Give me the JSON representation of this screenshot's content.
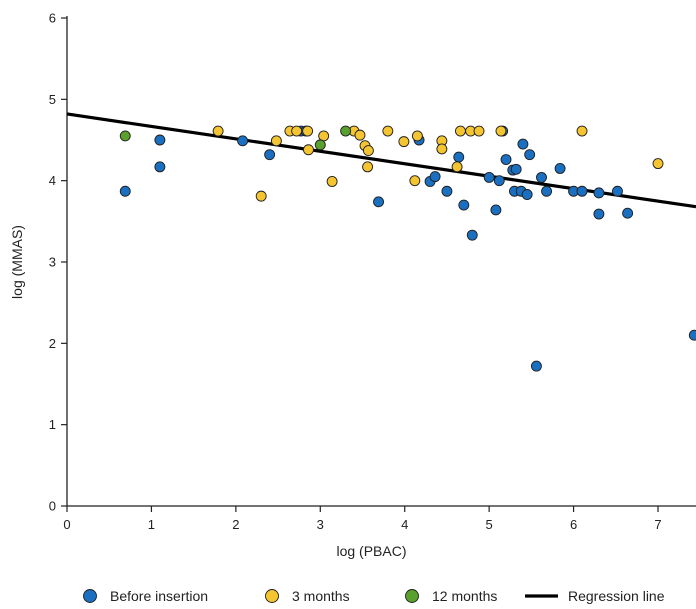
{
  "chart_data": {
    "type": "scatter",
    "title": "",
    "xlabel": "log (PBAC)",
    "ylabel": "log (MMAS)",
    "xlim": [
      0,
      7.45
    ],
    "ylim": [
      0,
      6
    ],
    "xticks": [
      0,
      1,
      2,
      3,
      4,
      5,
      6,
      7
    ],
    "yticks": [
      0,
      1,
      2,
      3,
      4,
      5,
      6
    ],
    "grid": false,
    "legend_position": "bottom",
    "series": [
      {
        "name": "Before insertion",
        "color": "#1a6fc0",
        "marker": "circle",
        "points": [
          [
            0.69,
            3.87
          ],
          [
            1.1,
            4.5
          ],
          [
            1.1,
            4.17
          ],
          [
            2.08,
            4.49
          ],
          [
            2.4,
            4.32
          ],
          [
            2.77,
            4.61
          ],
          [
            2.83,
            4.61
          ],
          [
            3.69,
            3.74
          ],
          [
            4.17,
            4.5
          ],
          [
            4.3,
            3.99
          ],
          [
            4.36,
            4.05
          ],
          [
            4.5,
            3.87
          ],
          [
            4.64,
            4.29
          ],
          [
            4.7,
            3.7
          ],
          [
            4.8,
            3.33
          ],
          [
            5.0,
            4.04
          ],
          [
            5.08,
            3.64
          ],
          [
            5.12,
            4.0
          ],
          [
            5.16,
            4.61
          ],
          [
            5.2,
            4.26
          ],
          [
            5.28,
            4.13
          ],
          [
            5.3,
            3.87
          ],
          [
            5.32,
            4.14
          ],
          [
            5.38,
            3.87
          ],
          [
            5.4,
            4.45
          ],
          [
            5.45,
            3.83
          ],
          [
            5.48,
            4.32
          ],
          [
            5.56,
            1.72
          ],
          [
            5.62,
            4.04
          ],
          [
            5.68,
            3.87
          ],
          [
            5.84,
            4.15
          ],
          [
            6.0,
            3.87
          ],
          [
            6.1,
            3.87
          ],
          [
            6.3,
            3.85
          ],
          [
            6.3,
            3.59
          ],
          [
            6.52,
            3.87
          ],
          [
            6.64,
            3.6
          ],
          [
            7.43,
            2.1
          ]
        ]
      },
      {
        "name": "3 months",
        "color": "#f4c431",
        "marker": "circle",
        "points": [
          [
            1.79,
            4.61
          ],
          [
            2.3,
            3.81
          ],
          [
            2.48,
            4.49
          ],
          [
            2.64,
            4.61
          ],
          [
            2.72,
            4.61
          ],
          [
            2.85,
            4.61
          ],
          [
            2.86,
            4.38
          ],
          [
            3.04,
            4.55
          ],
          [
            3.14,
            3.99
          ],
          [
            3.4,
            4.61
          ],
          [
            3.47,
            4.56
          ],
          [
            3.53,
            4.43
          ],
          [
            3.56,
            4.17
          ],
          [
            3.57,
            4.37
          ],
          [
            3.8,
            4.61
          ],
          [
            3.99,
            4.48
          ],
          [
            4.12,
            4.0
          ],
          [
            4.15,
            4.55
          ],
          [
            4.44,
            4.49
          ],
          [
            4.44,
            4.39
          ],
          [
            4.62,
            4.17
          ],
          [
            4.66,
            4.61
          ],
          [
            4.78,
            4.61
          ],
          [
            4.88,
            4.61
          ],
          [
            5.14,
            4.61
          ],
          [
            6.1,
            4.61
          ],
          [
            7.0,
            4.21
          ]
        ]
      },
      {
        "name": "12 months",
        "color": "#5aa02c",
        "marker": "circle",
        "points": [
          [
            0.69,
            4.55
          ],
          [
            3.0,
            4.44
          ],
          [
            3.3,
            4.61
          ]
        ]
      }
    ],
    "regression_line": {
      "name": "Regression line",
      "color": "#000000",
      "points": [
        [
          0,
          4.82
        ],
        [
          7.45,
          3.68
        ]
      ]
    }
  }
}
